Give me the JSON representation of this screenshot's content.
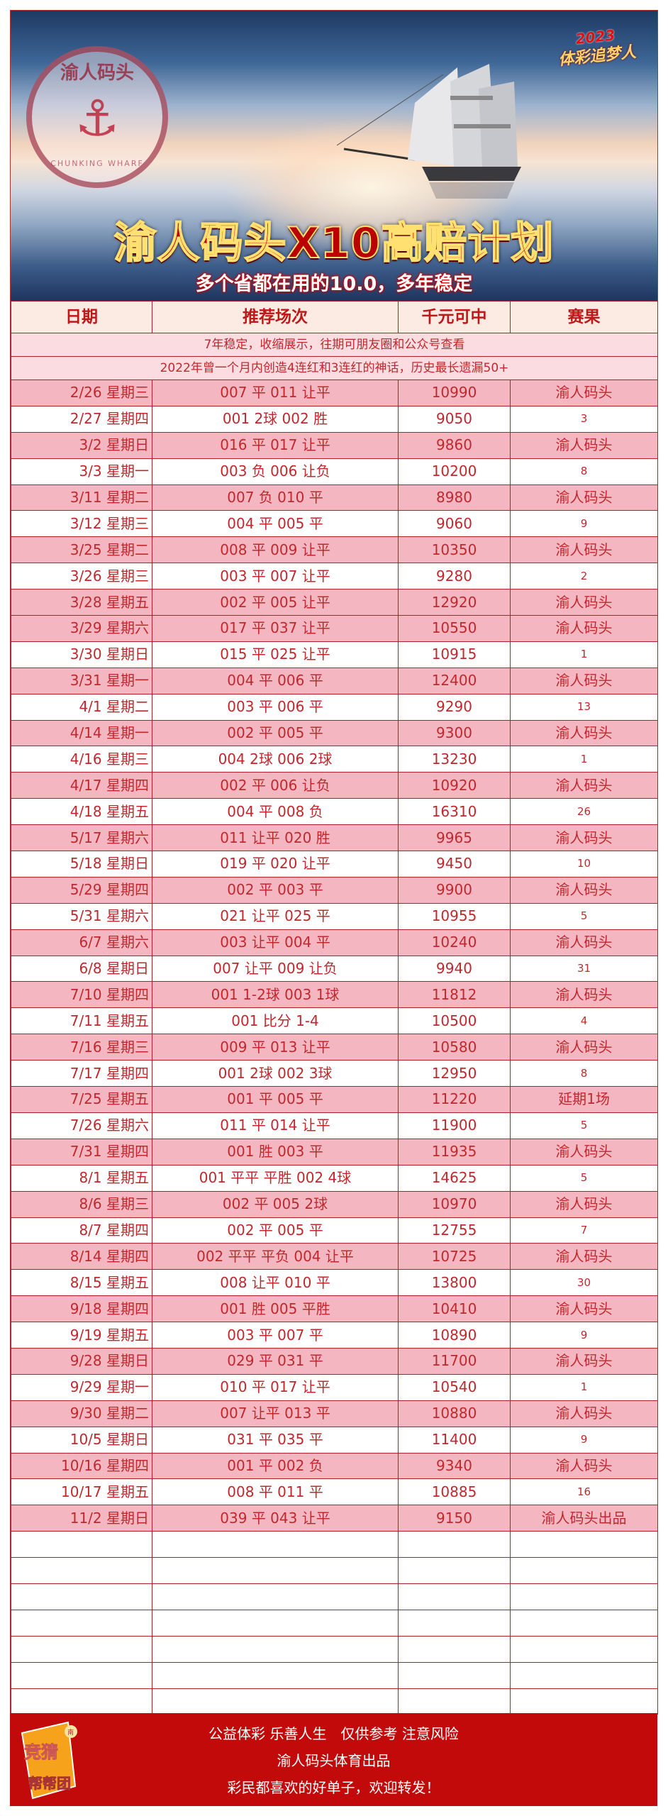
{
  "banner": {
    "seal_text": "渝人码头",
    "seal_subtext": "CHUNKING WHARF",
    "slogan_year": "2023",
    "slogan": "体彩追梦人",
    "title": "渝人码头X10高赔计划",
    "subtitle": "多个省都在用的10.0，多年稳定"
  },
  "table": {
    "headers": [
      "日期",
      "推荐场次",
      "千元可中",
      "赛果"
    ],
    "notes": [
      "7年稳定，收缩展示，往期可朋友圈和公众号查看",
      "2022年曾一个月内创造4连红和3连红的神话，历史最长遗漏50+"
    ],
    "rows": [
      [
        "2/26 星期三",
        "007 平 011 让平",
        "10990",
        "渝人码头"
      ],
      [
        "2/27 星期四",
        "001 2球 002 胜",
        "9050",
        "3"
      ],
      [
        "3/2 星期日",
        "016 平 017 让平",
        "9860",
        "渝人码头"
      ],
      [
        "3/3 星期一",
        "003 负 006 让负",
        "10200",
        "8"
      ],
      [
        "3/11 星期二",
        "007 负 010 平",
        "8980",
        "渝人码头"
      ],
      [
        "3/12 星期三",
        "004 平 005 平",
        "9060",
        "9"
      ],
      [
        "3/25 星期二",
        "008 平 009 让平",
        "10350",
        "渝人码头"
      ],
      [
        "3/26 星期三",
        "003 平 007 让平",
        "9280",
        "2"
      ],
      [
        "3/28 星期五",
        "002 平 005 让平",
        "12920",
        "渝人码头"
      ],
      [
        "3/29 星期六",
        "017 平 037 让平",
        "10550",
        "渝人码头"
      ],
      [
        "3/30 星期日",
        "015 平 025 让平",
        "10915",
        "1"
      ],
      [
        "3/31 星期一",
        "004 平 006 平",
        "12400",
        "渝人码头"
      ],
      [
        "4/1 星期二",
        "003 平 006 平",
        "9290",
        "13"
      ],
      [
        "4/14 星期一",
        "002 平 005 平",
        "9300",
        "渝人码头"
      ],
      [
        "4/16 星期三",
        "004 2球 006 2球",
        "13230",
        "1"
      ],
      [
        "4/17 星期四",
        "002 平 006 让负",
        "10920",
        "渝人码头"
      ],
      [
        "4/18 星期五",
        "004 平 008 负",
        "16310",
        "26"
      ],
      [
        "5/17 星期六",
        "011 让平 020 胜",
        "9965",
        "渝人码头"
      ],
      [
        "5/18 星期日",
        "019 平 020 让平",
        "9450",
        "10"
      ],
      [
        "5/29 星期四",
        "002 平 003 平",
        "9900",
        "渝人码头"
      ],
      [
        "5/31 星期六",
        "021 让平 025 平",
        "10955",
        "5"
      ],
      [
        "6/7 星期六",
        "003 让平 004 平",
        "10240",
        "渝人码头"
      ],
      [
        "6/8 星期日",
        "007 让平 009 让负",
        "9940",
        "31"
      ],
      [
        "7/10 星期四",
        "001 1-2球 003 1球",
        "11812",
        "渝人码头"
      ],
      [
        "7/11 星期五",
        "001 比分 1-4",
        "10500",
        "4"
      ],
      [
        "7/16 星期三",
        "009 平 013 让平",
        "10580",
        "渝人码头"
      ],
      [
        "7/17 星期四",
        "001 2球 002 3球",
        "12950",
        "8"
      ],
      [
        "7/25 星期五",
        "001 平 005 平",
        "11220",
        "延期1场"
      ],
      [
        "7/26 星期六",
        "011 平 014 让平",
        "11900",
        "5"
      ],
      [
        "7/31 星期四",
        "001 胜 003 平",
        "11935",
        "渝人码头"
      ],
      [
        "8/1 星期五",
        "001 平平 平胜 002 4球",
        "14625",
        "5"
      ],
      [
        "8/6 星期三",
        "002 平 005 2球",
        "10970",
        "渝人码头"
      ],
      [
        "8/7 星期四",
        "002 平 005 平",
        "12755",
        "7"
      ],
      [
        "8/14 星期四",
        "002 平平 平负 004 让平",
        "10725",
        "渝人码头"
      ],
      [
        "8/15 星期五",
        "008 让平 010 平",
        "13800",
        "30"
      ],
      [
        "9/18 星期四",
        "001 胜 005 平胜",
        "10410",
        "渝人码头"
      ],
      [
        "9/19 星期五",
        "003 平 007 平",
        "10890",
        "9"
      ],
      [
        "9/28 星期日",
        "029 平 031 平",
        "11700",
        "渝人码头"
      ],
      [
        "9/29 星期一",
        "010 平 017 让平",
        "10540",
        "1"
      ],
      [
        "9/30 星期二",
        "007 让平 013 平",
        "10880",
        "渝人码头"
      ],
      [
        "10/5 星期日",
        "031 平 035 平",
        "11400",
        "9"
      ],
      [
        "10/16 星期四",
        "001 平 002 负",
        "9340",
        "渝人码头"
      ],
      [
        "10/17 星期五",
        "008 平 011 平",
        "10885",
        "16"
      ],
      [
        "11/2 星期日",
        "039 平 043 让平",
        "9150",
        "渝人码头出品"
      ]
    ],
    "empty_rows": 7
  },
  "footer": {
    "logo_text": [
      "竞猜",
      "南城",
      "帮帮团"
    ],
    "lines": [
      "公益体彩 乐善人生　仅供参考 注意风险",
      "渝人码头体育出品",
      "彩民都喜欢的好单子，欢迎转发！"
    ]
  },
  "colors": {
    "text_red": "#c0282d",
    "row_pink": "#f4b7c1",
    "header_bg": "#fcebe2",
    "note_bg": "#fbdce0",
    "footer_red": "#c30a0a"
  }
}
